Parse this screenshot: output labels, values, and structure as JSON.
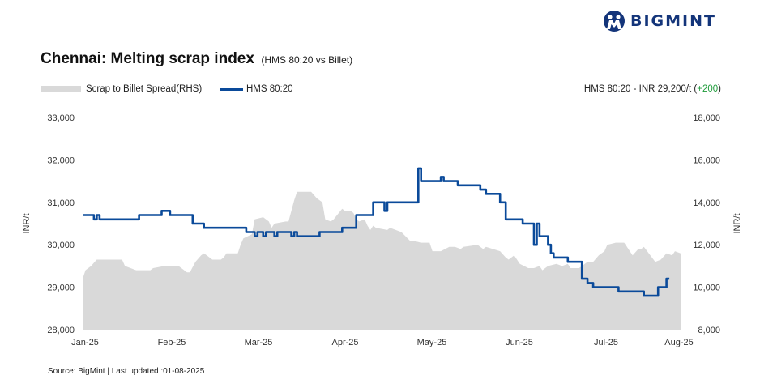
{
  "brand": {
    "name": "BIGMINT"
  },
  "header": {
    "title": "Chennai: Melting scrap index",
    "subtitle": "(HMS 80:20 vs Billet)"
  },
  "legend": {
    "area_label": "Scrap to Billet Spread(RHS)",
    "line_label": "HMS 80:20"
  },
  "price_note": {
    "text": "HMS 80:20 - INR 29,200/t (",
    "change": "+200",
    "close": ")"
  },
  "footer": {
    "source": "Source: BigMint | Last updated :01-08-2025"
  },
  "colors": {
    "line": "#0a4a9a",
    "area": "#d9d9d9",
    "change": "#1e9b3a",
    "brand": "#14357a"
  },
  "chart_data": {
    "type": "line",
    "title": "Chennai: Melting scrap index",
    "x_labels": [
      "Jan-25",
      "Feb-25",
      "Mar-25",
      "Apr-25",
      "May-25",
      "Jun-25",
      "Jul-25",
      "Aug-25"
    ],
    "x_range": [
      0,
      212
    ],
    "y_left": {
      "label": "INR/t",
      "ticks": [
        "28,000",
        "29,000",
        "30,000",
        "31,000",
        "32,000",
        "33,000"
      ],
      "range": [
        28000,
        33000
      ]
    },
    "y_right": {
      "label": "INR/t",
      "ticks": [
        "8,000",
        "10,000",
        "12,000",
        "14,000",
        "16,000",
        "18,000"
      ],
      "range": [
        8000,
        18000
      ]
    },
    "grid": false,
    "legend_position": "top-left",
    "series": [
      {
        "name": "HMS 80:20",
        "axis": "left",
        "kind": "step-line",
        "x": [
          0,
          3,
          4,
          5,
          6,
          12,
          20,
          27,
          28,
          29,
          31,
          33,
          39,
          40,
          43,
          44,
          48,
          57,
          58,
          59,
          61,
          62,
          64,
          65,
          68,
          69,
          73,
          74,
          75,
          76,
          78,
          82,
          84,
          86,
          88,
          89,
          90,
          92,
          97,
          103,
          106,
          107,
          108,
          110,
          112,
          115,
          119,
          120,
          121,
          125,
          127,
          128,
          130,
          133,
          135,
          141,
          142,
          143,
          148,
          150,
          156,
          160,
          161,
          162,
          165,
          166,
          167,
          172,
          175,
          177,
          178,
          179,
          181,
          190,
          192,
          197,
          199,
          203,
          204,
          207,
          208
        ],
        "y": [
          30700,
          30700,
          30600,
          30700,
          30600,
          30600,
          30700,
          30700,
          30800,
          30800,
          30700,
          30700,
          30500,
          30500,
          30400,
          30400,
          30400,
          30400,
          30300,
          30300,
          30200,
          30300,
          30200,
          30300,
          30200,
          30300,
          30300,
          30200,
          30300,
          30200,
          30200,
          30200,
          30300,
          30300,
          30300,
          30300,
          30300,
          30400,
          30700,
          31000,
          31000,
          30800,
          31000,
          31000,
          31000,
          31000,
          31800,
          31500,
          31500,
          31500,
          31600,
          31500,
          31500,
          31400,
          31400,
          31300,
          31300,
          31200,
          31000,
          30600,
          30500,
          30000,
          30500,
          30200,
          30000,
          29800,
          29700,
          29600,
          29600,
          29200,
          29200,
          29100,
          29000,
          28900,
          28900,
          28900,
          28800,
          28800,
          29000,
          29200,
          29200
        ]
      },
      {
        "name": "Scrap to Billet Spread(RHS)",
        "axis": "right",
        "kind": "area",
        "x": [
          0,
          1,
          3,
          5,
          7,
          14,
          15,
          19,
          24,
          25,
          29,
          34,
          37,
          38,
          40,
          42,
          43,
          46,
          49,
          50,
          51,
          55,
          56,
          57,
          60,
          61,
          64,
          66,
          67,
          68,
          72,
          73,
          75,
          76,
          81,
          83,
          85,
          86,
          88,
          89,
          92,
          93,
          95,
          96,
          97,
          98,
          100,
          101,
          102,
          103,
          104,
          108,
          109,
          113,
          116,
          117,
          120,
          123,
          124,
          127,
          130,
          132,
          134,
          135,
          140,
          142,
          143,
          148,
          150,
          151,
          153,
          155,
          158,
          160,
          162,
          163,
          165,
          168,
          170,
          172,
          173,
          176,
          179,
          181,
          183,
          185,
          186,
          189,
          190,
          192,
          195,
          197,
          198,
          199,
          203,
          205,
          207,
          209,
          210,
          212,
          212
        ],
        "y": [
          10400,
          10800,
          11000,
          11300,
          11300,
          11300,
          11000,
          10800,
          10800,
          10900,
          11000,
          11000,
          10700,
          10700,
          11200,
          11500,
          11600,
          11300,
          11300,
          11400,
          11600,
          11600,
          12000,
          12300,
          12500,
          13200,
          13300,
          13100,
          12800,
          13000,
          13100,
          13100,
          14100,
          14500,
          14500,
          14200,
          14000,
          13200,
          13100,
          13200,
          13700,
          13600,
          13600,
          13500,
          13200,
          13100,
          13200,
          12900,
          12700,
          12900,
          12800,
          12700,
          12800,
          12600,
          12200,
          12200,
          12100,
          12100,
          11700,
          11700,
          11900,
          11900,
          11800,
          11900,
          12000,
          11800,
          11900,
          11700,
          11400,
          11300,
          11500,
          11100,
          10900,
          10900,
          11000,
          10800,
          11000,
          11100,
          11000,
          11100,
          10900,
          10900,
          11200,
          11200,
          11500,
          11700,
          12000,
          12100,
          12100,
          12100,
          11500,
          11800,
          11800,
          11900,
          11200,
          11300,
          11600,
          11500,
          11700,
          11600,
          11700
        ]
      }
    ]
  }
}
